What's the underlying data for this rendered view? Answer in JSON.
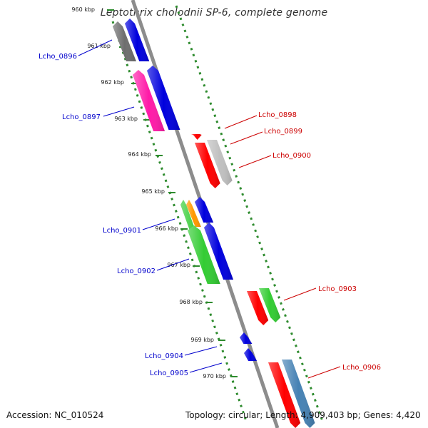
{
  "title": "Leptothrix cholodnii SP-6, complete genome",
  "accession": "Accession: NC_010524",
  "topology": "Topology: circular; Length: 4,909,403 bp; Genes: 4,420",
  "colors": {
    "backbone": "#8c8c8c",
    "tick": "#2e8b2e",
    "left_label": "#0000cc",
    "right_label": "#cc0000"
  },
  "ticks": [
    "960 kbp",
    "961 kbp",
    "962 kbp",
    "963 kbp",
    "964 kbp",
    "965 kbp",
    "966 kbp",
    "967 kbp",
    "968 kbp",
    "969 kbp",
    "970 kbp"
  ],
  "genes": [
    {
      "name": "Lcho_0896",
      "color": "#6e6e6e",
      "strand": "plus",
      "label": "Lcho_0896",
      "side": "left"
    },
    {
      "name": "",
      "color": "#0000dd",
      "strand": "plus",
      "label": "",
      "side": "left"
    },
    {
      "name": "Lcho_0897",
      "color": "#ff1aa8",
      "strand": "plus",
      "label": "Lcho_0897",
      "side": "left"
    },
    {
      "name": "",
      "color": "#0000dd",
      "strand": "plus",
      "label": "",
      "side": "left"
    },
    {
      "name": "Lcho_0898",
      "color": "#ff0000",
      "strand": "minus",
      "label": "Lcho_0898",
      "side": "right"
    },
    {
      "name": "Lcho_0899",
      "color": "#c0c0c0",
      "strand": "minus",
      "label": "Lcho_0899",
      "side": "right"
    },
    {
      "name": "Lcho_0900",
      "color": "#ff0000",
      "strand": "minus",
      "label": "Lcho_0900",
      "side": "right"
    },
    {
      "name": "Lcho_0901",
      "color": "#ff9900",
      "strand": "plus",
      "label": "Lcho_0901",
      "side": "left"
    },
    {
      "name": "",
      "color": "#33cc33",
      "strand": "plus",
      "label": "",
      "side": "left"
    },
    {
      "name": "",
      "color": "#0000dd",
      "strand": "plus",
      "label": "",
      "side": "left"
    },
    {
      "name": "Lcho_0902",
      "color": "#33cc33",
      "strand": "plus",
      "label": "Lcho_0902",
      "side": "left"
    },
    {
      "name": "",
      "color": "#0000dd",
      "strand": "plus",
      "label": "",
      "side": "left"
    },
    {
      "name": "Lcho_0903",
      "color": "#ff0000",
      "strand": "minus",
      "label": "Lcho_0903",
      "side": "right"
    },
    {
      "name": "",
      "color": "#33cc33",
      "strand": "minus",
      "label": "",
      "side": "right"
    },
    {
      "name": "Lcho_0904",
      "color": "#0000dd",
      "strand": "plus",
      "label": "Lcho_0904",
      "side": "left"
    },
    {
      "name": "Lcho_0905",
      "color": "#0000dd",
      "strand": "plus",
      "label": "Lcho_0905",
      "side": "left"
    },
    {
      "name": "Lcho_0906",
      "color": "#ff0000",
      "strand": "minus",
      "label": "Lcho_0906",
      "side": "right"
    },
    {
      "name": "",
      "color": "#4682b4",
      "strand": "minus",
      "label": "",
      "side": "right"
    }
  ]
}
